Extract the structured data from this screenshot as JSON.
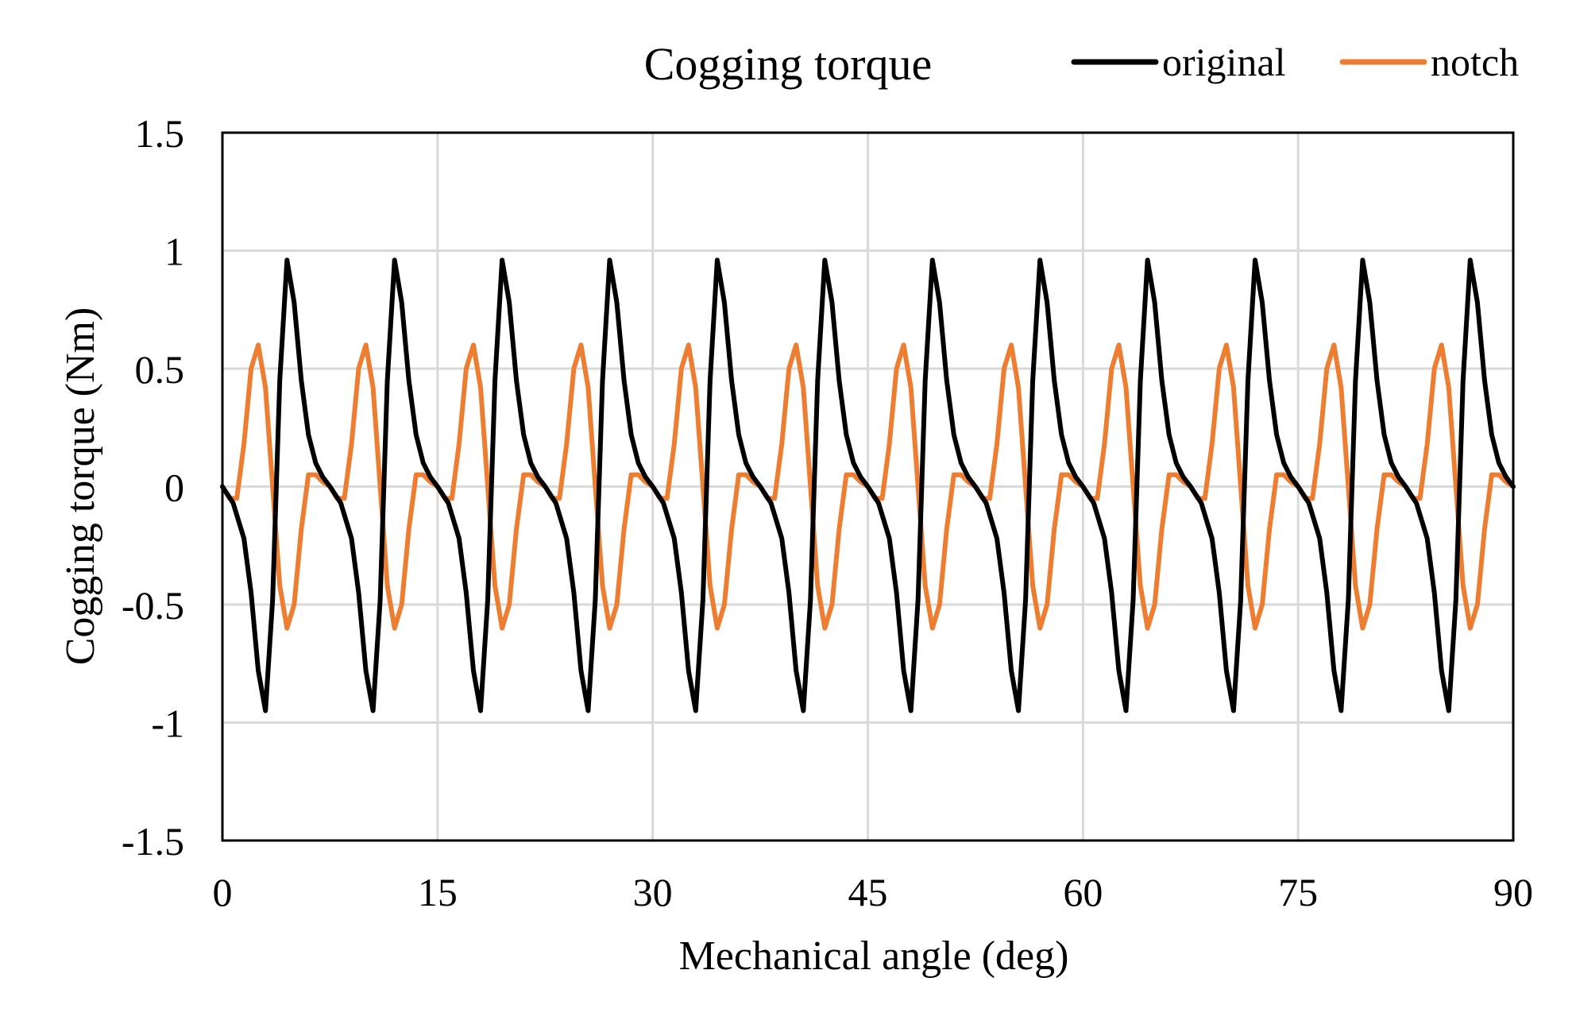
{
  "chart_data": {
    "type": "line",
    "title": "Cogging torque",
    "xlabel": "Mechanical angle (deg)",
    "ylabel": "Cogging torque (Nm)",
    "xlim": [
      0,
      90
    ],
    "ylim": [
      -1.5,
      1.5
    ],
    "xticks": [
      0,
      15,
      30,
      45,
      60,
      75,
      90
    ],
    "yticks": [
      1.5,
      1,
      0.5,
      0,
      -0.5,
      -1,
      -1.5
    ],
    "xtick_labels": [
      "0",
      "15",
      "30",
      "45",
      "60",
      "75",
      "90"
    ],
    "ytick_labels": [
      "1.5",
      "1",
      "0.5",
      "0",
      "-0.5",
      "-1",
      "-1.5"
    ],
    "grid": true,
    "legend_position": "top-right",
    "period_deg": 7.5,
    "series": [
      {
        "name": "original",
        "color": "#000000",
        "x": [
          0,
          0.75,
          1.5,
          2,
          2.5,
          3,
          3.5,
          4,
          4.5,
          5,
          5.5,
          6,
          6.5,
          7,
          7.5
        ],
        "y": [
          0,
          -0.07,
          -0.22,
          -0.45,
          -0.78,
          -0.95,
          -0.48,
          0.45,
          0.96,
          0.78,
          0.45,
          0.22,
          0.1,
          0.04,
          0
        ]
      },
      {
        "name": "notch",
        "color": "#ed7d31",
        "x": [
          0,
          0.5,
          1,
          1.5,
          2,
          2.5,
          3,
          3.5,
          4,
          4.5,
          5,
          5.5,
          6,
          6.5,
          7,
          7.5
        ],
        "y": [
          0,
          -0.05,
          -0.05,
          0.18,
          0.5,
          0.6,
          0.42,
          0,
          -0.42,
          -0.6,
          -0.5,
          -0.18,
          0.05,
          0.05,
          0.02,
          0
        ]
      }
    ]
  }
}
